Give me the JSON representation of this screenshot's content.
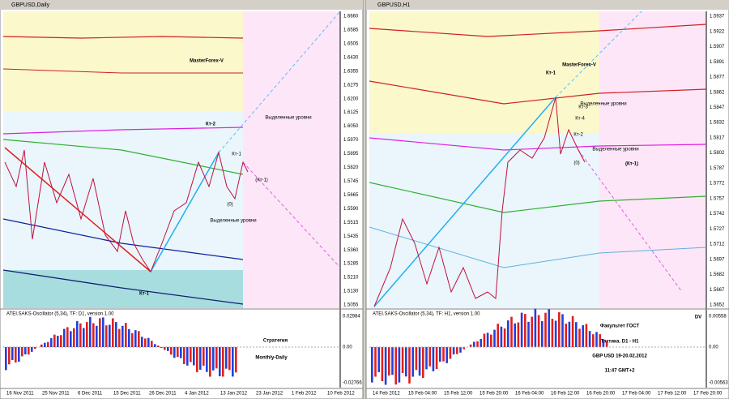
{
  "windows": [
    {
      "title": "GBPUSD,Daily",
      "price_labels": [
        "1.6660",
        "1.6585",
        "1.6505",
        "1.6430",
        "1.6355",
        "1.6275",
        "1.6200",
        "1.6125",
        "1.6050",
        "1.5970",
        "1.5895",
        "1.5820",
        "1.5745",
        "1.5665",
        "1.5590",
        "1.5515",
        "1.5435",
        "1.5360",
        "1.5285",
        "1.5210",
        "1.5130",
        "1.5055"
      ],
      "dates": [
        "16 Nov 2011",
        "25 Nov 2011",
        "6 Dec 2011",
        "15 Dec 2011",
        "26 Dec 2011",
        "4 Jan 2012",
        "13 Jan 2012",
        "23 Jan 2012",
        "1 Feb 2012",
        "10 Feb 2012"
      ],
      "annotations": [
        "MasterForex-V",
        "Кт-2",
        "Кт-1",
        "(Кт-1)",
        "(0)",
        "Выделенные уровни",
        "Выделенные уровни",
        "Кт-1",
        "Стратегия",
        "Monthly-Daily"
      ],
      "oscillator": {
        "label": "ATEI.SAKS-Oscillator (5,34), TF: D1, version 1.00",
        "ticks": [
          "0.02984",
          "0.00",
          "-0.02766"
        ]
      }
    },
    {
      "title": "GBPUSD,H1",
      "price_labels": [
        "1.5937",
        "1.5922",
        "1.5907",
        "1.5891",
        "1.5877",
        "1.5862",
        "1.5847",
        "1.5832",
        "1.5817",
        "1.5802",
        "1.5787",
        "1.5772",
        "1.5757",
        "1.5742",
        "1.5727",
        "1.5712",
        "1.5697",
        "1.5682",
        "1.5667",
        "1.5652"
      ],
      "dates": [
        "14 Feb 2012",
        "15 Feb 04:00",
        "15 Feb 12:00",
        "15 Feb 20:00",
        "16 Feb 04:00",
        "16 Feb 12:00",
        "16 Feb 20:00",
        "17 Feb 04:00",
        "17 Feb 12:00",
        "17 Feb 20:00"
      ],
      "annotations": [
        "MasterForex-V",
        "Кт-1",
        "Кт-3",
        "Кт-4",
        "Кт-2",
        "(0)",
        "(Кт-1)",
        "Выделенные уровни",
        "Выделенные уровни",
        "Факультет ГОСТ",
        "Тактика. D1 - H1",
        "GBP USD 19-20.02.2012",
        "11:47 GMT+2",
        "DV"
      ],
      "oscillator": {
        "label": "ATEI.SAKS-Oscillator (5,34), TF: H1, version 1.00",
        "ticks": [
          "0.00558",
          "0.00",
          "-0.00563"
        ]
      }
    }
  ]
}
